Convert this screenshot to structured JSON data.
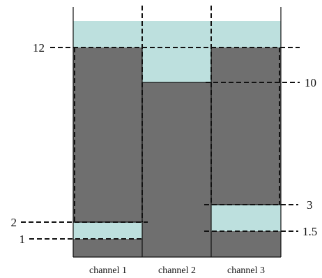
{
  "diagram": {
    "colors": {
      "solid": "#6f6f6f",
      "water": "#bde0de",
      "line": "#111111",
      "background": "#ffffff"
    },
    "levels": {
      "left": [
        {
          "value": "12"
        },
        {
          "value": "2"
        },
        {
          "value": "1"
        }
      ],
      "right": [
        {
          "value": "10"
        },
        {
          "value": "3"
        },
        {
          "value": "1.5"
        }
      ]
    },
    "channels": [
      {
        "label": "channel 1"
      },
      {
        "label": "channel 2"
      },
      {
        "label": "channel 3"
      }
    ]
  }
}
